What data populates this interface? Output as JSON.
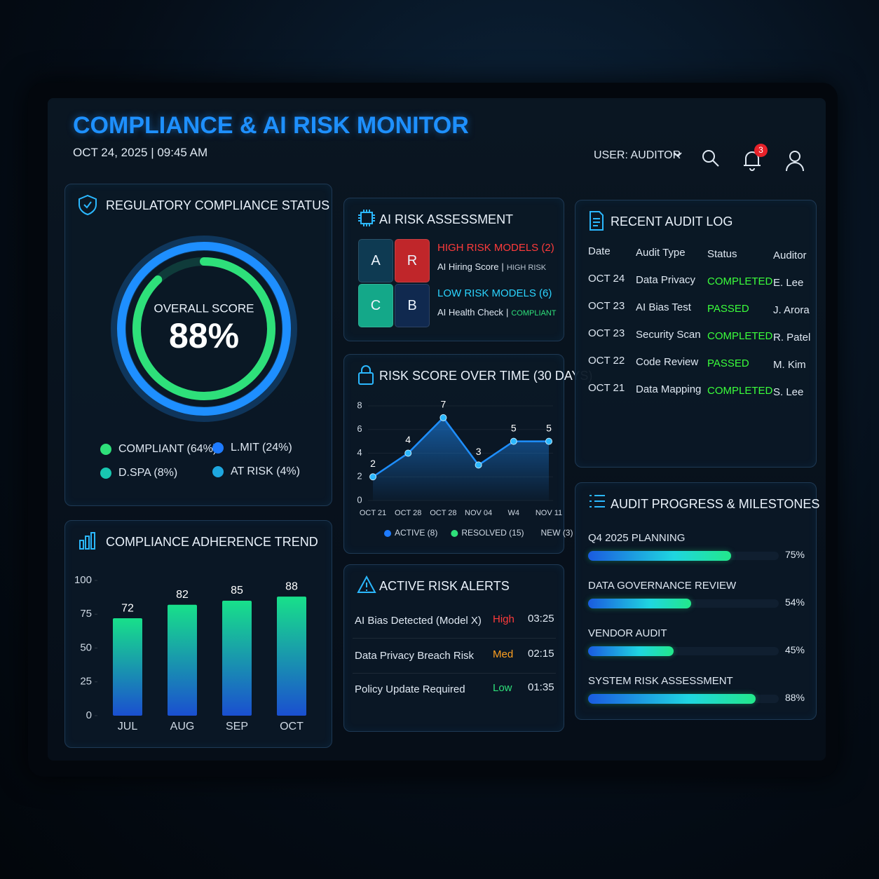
{
  "header": {
    "title": "COMPLIANCE & AI RISK MONITOR",
    "datetime": "OCT 24, 2025 | 09:45 AM",
    "user": "USER: AUDITOR",
    "notifications": 3
  },
  "compliance_status": {
    "title": "REGULATORY COMPLIANCE STATUS",
    "score_caption": "OVERALL SCORE",
    "score": {
      "value": 88,
      "label": "88%"
    },
    "color": "#2ee07a",
    "legend": [
      {
        "label": "COMPLIANT (64%)",
        "color": "#2ee07a"
      },
      {
        "label": "L.MIT (24%)",
        "color": "#1e7bff"
      },
      {
        "label": "D.SPA (8%)",
        "color": "#18c7b0"
      },
      {
        "label": "AT RISK (4%)",
        "color": "#1ea7e0"
      }
    ]
  },
  "adherence_trend": {
    "title": "COMPLIANCE ADHERENCE TREND",
    "chart_data": {
      "type": "bar",
      "categories": [
        "JUL",
        "AUG",
        "SEP",
        "OCT"
      ],
      "values": [
        72,
        82,
        85,
        88
      ],
      "ylim": [
        0,
        100
      ],
      "yticks": [
        0,
        25,
        50,
        75,
        100
      ],
      "color_top": "#18e08a",
      "color_bottom": "#1a4fd0"
    }
  },
  "ai_risk": {
    "title": "AI RISK ASSESSMENT",
    "tiles": [
      {
        "text": "A",
        "color": "#0e3a52"
      },
      {
        "text": "R",
        "color": "#c0262a"
      },
      {
        "text": "C",
        "color": "#14a889"
      },
      {
        "text": "B",
        "color": "#10294f"
      }
    ],
    "high": {
      "heading": "HIGH RISK MODELS (2)",
      "model": "AI Hiring Score",
      "separator": "|",
      "status": "HIGH RISK",
      "color": "#ff3b3b"
    },
    "low": {
      "heading": "LOW RISK MODELS (6)",
      "model": "AI Health Check",
      "separator": "|",
      "status": "COMPLIANT",
      "color": "#2bd4ff",
      "status_color": "#2ee07a"
    }
  },
  "risk_score": {
    "title": "RISK SCORE OVER TIME (30 DAYS)",
    "chart_data": {
      "type": "line",
      "categories": [
        "OCT 21",
        "OCT 28",
        "OCT 28",
        "NOV 04",
        "W4",
        "NOV 11"
      ],
      "values": [
        2,
        4,
        7,
        3,
        5,
        5
      ],
      "ylim": [
        0,
        8
      ],
      "yticks": [
        0,
        2,
        4,
        6,
        8
      ],
      "color": "#1e8fff"
    },
    "legend": [
      {
        "label": "ACTIVE (8)",
        "color": "#1e7bff"
      },
      {
        "label": "RESOLVED (15)",
        "color": "#2ee07a"
      },
      {
        "label": "NEW (3)"
      }
    ]
  },
  "alerts": {
    "title": "ACTIVE RISK ALERTS",
    "rows": [
      {
        "alert": "AI Bias Detected (Model X)",
        "level": "High",
        "time": "03:25",
        "color": "#ff3b3b"
      },
      {
        "alert": "Data Privacy Breach Risk",
        "level": "Med",
        "time": "02:15",
        "color": "#ffa020"
      },
      {
        "alert": "Policy Update Required",
        "level": "Low",
        "time": "01:35",
        "color": "#2ee07a"
      }
    ]
  },
  "audit_log": {
    "title": "RECENT AUDIT LOG",
    "columns": [
      "Date",
      "Audit Type",
      "Status",
      "Auditor"
    ],
    "status_color": "#3bff3b",
    "rows": [
      [
        "OCT 24",
        "Data Privacy",
        "COMPLETED",
        "E. Lee"
      ],
      [
        "OCT 23",
        "AI Bias Test",
        "PASSED",
        "J. Arora"
      ],
      [
        "OCT 23",
        "Security Scan",
        "COMPLETED",
        "R. Patel"
      ],
      [
        "OCT 22",
        "Code Review",
        "PASSED",
        "M. Kim"
      ],
      [
        "OCT 21",
        "Data Mapping",
        "COMPLETED",
        "S. Lee"
      ]
    ]
  },
  "progress": {
    "title": "AUDIT PROGRESS & MILESTONES",
    "items": [
      {
        "label": "Q4 2025 PLANNING",
        "value": 75,
        "value_label": "75%"
      },
      {
        "label": "DATA GOVERNANCE REVIEW",
        "value": 54,
        "value_label": "54%"
      },
      {
        "label": "VENDOR AUDIT",
        "value": 45,
        "value_label": "45%"
      },
      {
        "label": "SYSTEM RISK ASSESSMENT",
        "value": 88,
        "value_label": "88%"
      }
    ]
  }
}
